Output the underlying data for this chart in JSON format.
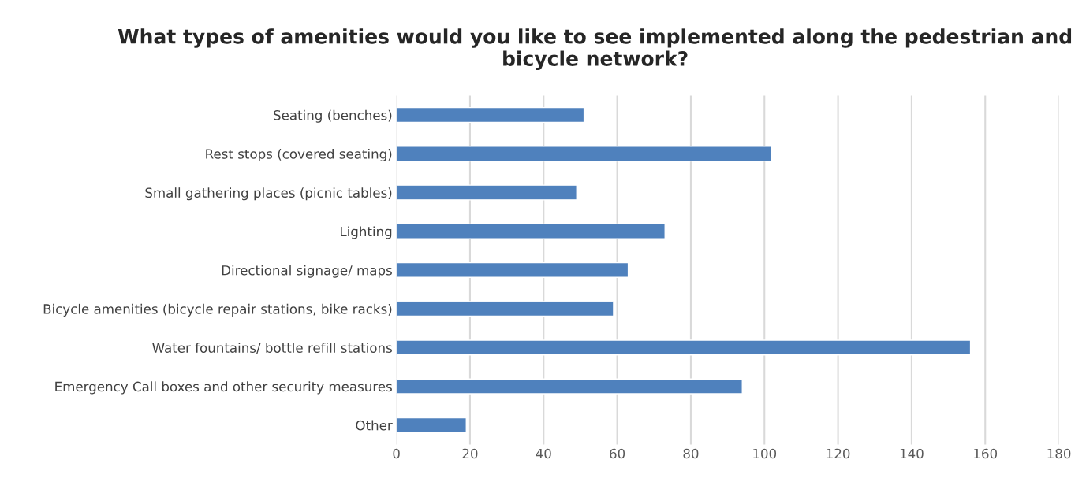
{
  "chart_data": {
    "type": "bar",
    "orientation": "horizontal",
    "title": "What types of amenities would you like to see implemented along the pedestrian and bicycle network?",
    "categories": [
      "Seating (benches)",
      "Rest stops (covered seating)",
      "Small gathering places (picnic tables)",
      "Lighting",
      "Directional signage/ maps",
      "Bicycle amenities (bicycle repair stations, bike racks)",
      "Water fountains/ bottle refill stations",
      "Emergency Call boxes and other security measures",
      "Other"
    ],
    "values": [
      51,
      102,
      49,
      73,
      63,
      59,
      156,
      94,
      19
    ],
    "color": "#4f81bd",
    "xlim": [
      0,
      180
    ],
    "xticks": [
      0,
      20,
      40,
      60,
      80,
      100,
      120,
      140,
      160,
      180
    ],
    "grid": "x"
  }
}
